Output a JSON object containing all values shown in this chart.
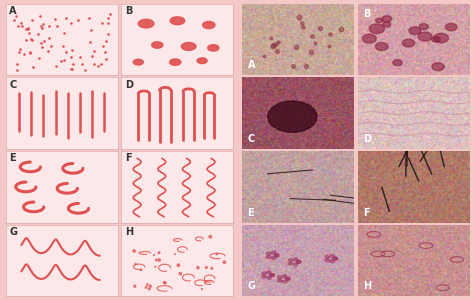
{
  "bg_color": "#f5c8c8",
  "panel_bg": "#fce8e8",
  "panel_border": "#ddaaaa",
  "draw_color": "#e05050",
  "fig_width": 4.74,
  "fig_height": 3.0,
  "labels": [
    "A",
    "B",
    "C",
    "D",
    "E",
    "F",
    "G",
    "H"
  ],
  "label_fontsize": 7,
  "label_color": "#333333",
  "photo_colors_A": [
    "#c8a090",
    "#b89080"
  ],
  "photo_colors_B": [
    "#e8b0b0",
    "#d090a0"
  ],
  "photo_colors_C": [
    "#b07070",
    "#601010"
  ],
  "photo_colors_D": [
    "#e0c0c0",
    "#d0b0b0"
  ],
  "photo_colors_E": [
    "#c0a0a0",
    "#b09090"
  ],
  "photo_colors_F": [
    "#c09080",
    "#906050"
  ],
  "photo_colors_G": [
    "#d0a0a8",
    "#c09098"
  ],
  "photo_colors_H": [
    "#c09090",
    "#e0a0a0"
  ]
}
